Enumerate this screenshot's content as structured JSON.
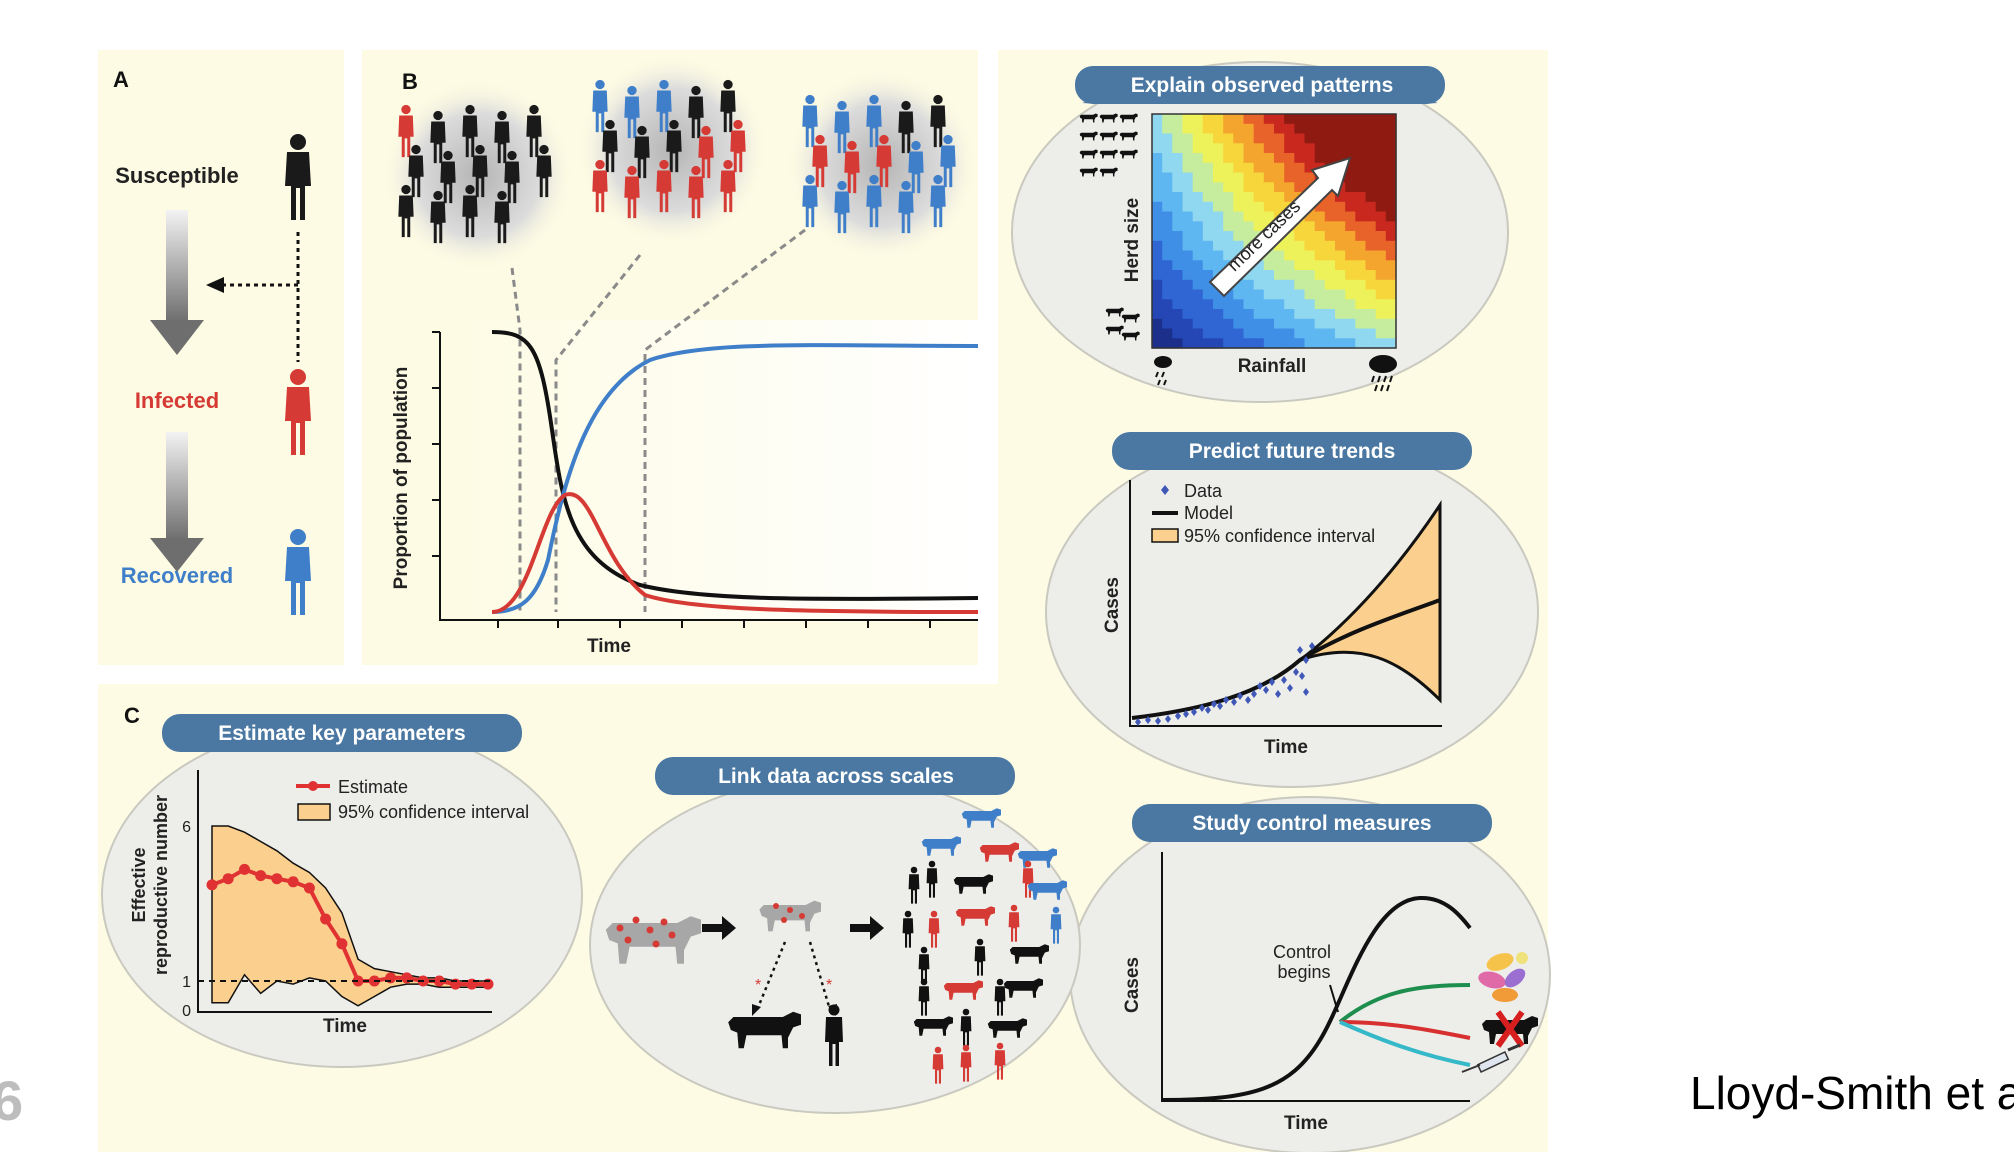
{
  "panel_a": {
    "label": "A",
    "susceptible": "Susceptible",
    "infected": "Infected",
    "recovered": "Recovered",
    "colors": {
      "susceptible": "#1a1a1a",
      "infected": "#d63a35",
      "recovered": "#3f7fc9"
    }
  },
  "panel_b": {
    "label": "B",
    "ylabel": "Proportion of population",
    "xlabel": "Time",
    "crowds": [
      {
        "black": 13,
        "red": 1,
        "blue": 0
      },
      {
        "black": 5,
        "red": 7,
        "blue": 3
      },
      {
        "black": 2,
        "red": 3,
        "blue": 10
      }
    ]
  },
  "panel_c": {
    "label": "C"
  },
  "explain": {
    "title": "Explain observed patterns",
    "xlabel": "Rainfall",
    "ylabel": "Herd size",
    "arrow_label": "more cases"
  },
  "predict": {
    "title": "Predict future trends",
    "xlabel": "Time",
    "ylabel": "Cases",
    "legend": [
      "Data",
      "Model",
      "95% confidence interval"
    ]
  },
  "estimate": {
    "title": "Estimate key parameters",
    "ylabel": [
      "Effective",
      "reproductive number"
    ],
    "xlabel": "Time",
    "ticks": [
      "6",
      "1",
      "0"
    ],
    "legend": [
      "Estimate",
      "95% confidence interval"
    ],
    "estimate_values": [
      4.1,
      4.3,
      4.6,
      4.4,
      4.3,
      4.2,
      4.0,
      3.0,
      2.2,
      1.0,
      1.0,
      1.1,
      1.1,
      1.0,
      1.0,
      0.9,
      0.9,
      0.9
    ],
    "ci_upper": [
      6.0,
      6.0,
      5.8,
      5.5,
      5.2,
      4.8,
      4.5,
      4.0,
      3.2,
      1.7,
      1.4,
      1.3,
      1.2,
      1.1,
      1.1,
      1.0,
      1.0,
      1.0
    ],
    "ci_lower": [
      0.3,
      0.3,
      1.2,
      0.6,
      1.0,
      0.9,
      1.1,
      1.0,
      0.5,
      0.2,
      0.5,
      0.8,
      0.9,
      0.9,
      0.8,
      0.8,
      0.8,
      0.8
    ]
  },
  "link": {
    "title": "Link data across scales"
  },
  "control": {
    "title": "Study control measures",
    "xlabel": "Time",
    "ylabel": "Cases",
    "annotation": [
      "Control",
      "begins"
    ]
  },
  "caption": "Lloyd-Smith et a",
  "slide_number": "6",
  "colors": {
    "panel_bg": "#fdfbe3",
    "oval_bg": "#edeeea",
    "title_bar": "#4a78a2",
    "ci_fill": "#fbcf8e",
    "estimate": "#e03232",
    "model": "#111111",
    "data_points": "#3f58b8",
    "control_green": "#1e8e4e",
    "control_red": "#d83030",
    "control_cyan": "#35b8c8"
  }
}
